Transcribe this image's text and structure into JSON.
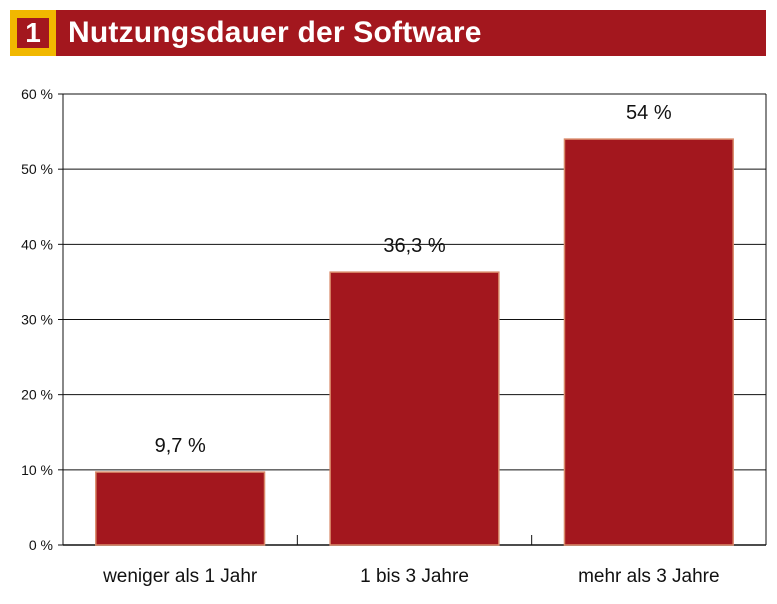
{
  "header": {
    "number": "1",
    "title": "Nutzungsdauer der Software"
  },
  "colors": {
    "bar": "#a3171e",
    "bar_edge": "#d98a6a",
    "accent": "#f1b800"
  },
  "chart_data": {
    "type": "bar",
    "title": "Nutzungsdauer der Software",
    "categories": [
      "weniger als 1 Jahr",
      "1 bis 3 Jahre",
      "mehr als 3 Jahre"
    ],
    "values": [
      9.7,
      36.3,
      54
    ],
    "data_labels": [
      "9,7 %",
      "36,3 %",
      "54 %"
    ],
    "yticks": [
      0,
      10,
      20,
      30,
      40,
      50,
      60
    ],
    "ytick_labels": [
      "0 %",
      "10 %",
      "20 %",
      "30 %",
      "40 %",
      "50 %",
      "60 %"
    ],
    "ylim": [
      0,
      60
    ],
    "grid": true,
    "xlabel": "",
    "ylabel": ""
  }
}
